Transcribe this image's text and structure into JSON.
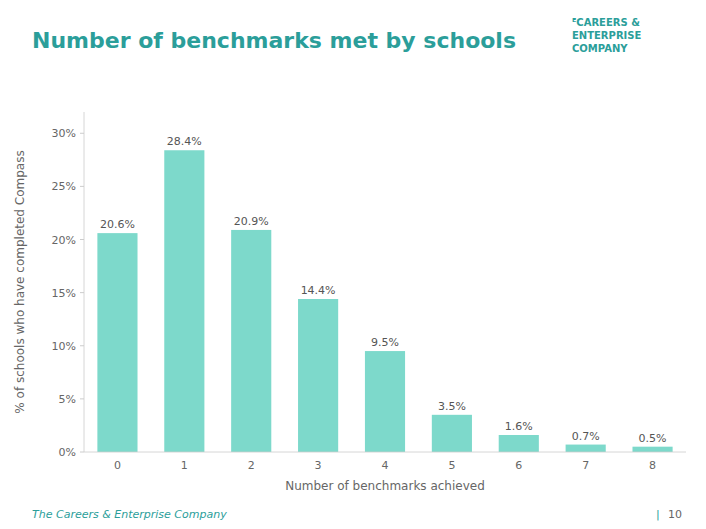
{
  "chart_data": {
    "type": "bar",
    "title": "Number of benchmarks met by schools",
    "xlabel": "Number of benchmarks achieved",
    "ylabel": "% of schools who have completed Compass",
    "categories": [
      0,
      1,
      2,
      3,
      4,
      5,
      6,
      7,
      8
    ],
    "values": [
      20.6,
      28.4,
      20.9,
      14.4,
      9.5,
      3.5,
      1.6,
      0.7,
      0.5
    ],
    "value_labels": [
      "20.6%",
      "28.4%",
      "20.9%",
      "14.4%",
      "9.5%",
      "3.5%",
      "1.6%",
      "0.7%",
      "0.5%"
    ],
    "data_labels": true,
    "color": "#7DD9CB",
    "ylim": [
      0,
      32
    ],
    "yticks": [
      {
        "value": 0,
        "label": "0%"
      },
      {
        "value": 5,
        "label": "5%"
      },
      {
        "value": 10,
        "label": "10%"
      },
      {
        "value": 15,
        "label": "15%"
      },
      {
        "value": 20,
        "label": "20%"
      },
      {
        "value": 25,
        "label": "25%"
      },
      {
        "value": 30,
        "label": "30%"
      }
    ],
    "grid": false,
    "annotations": [
      "ᴱCAREERS &",
      "ENTERPRISE",
      "COMPANY",
      "The Careers & Enterprise Company",
      "|",
      "10"
    ]
  }
}
